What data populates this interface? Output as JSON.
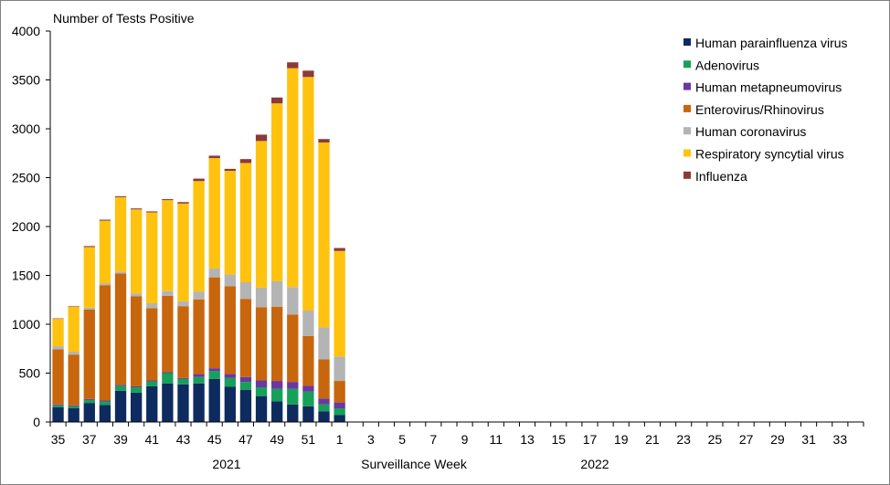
{
  "chart_data": {
    "type": "bar",
    "stacked": true,
    "ylabel": "Number of Tests Positive",
    "xlabel": "Surveillance Week",
    "ylim": [
      0,
      4000
    ],
    "yticks": [
      "0",
      "500",
      "1000",
      "1500",
      "2000",
      "2500",
      "3000",
      "3500",
      "4000"
    ],
    "xticks": [
      "35",
      "37",
      "39",
      "41",
      "43",
      "45",
      "47",
      "49",
      "51",
      "1",
      "3",
      "5",
      "7",
      "9",
      "11",
      "13",
      "15",
      "17",
      "19",
      "21",
      "23",
      "25",
      "27",
      "29",
      "31",
      "33"
    ],
    "year_labels": [
      "2021",
      "2022"
    ],
    "weeks": [
      "35",
      "36",
      "37",
      "38",
      "39",
      "40",
      "41",
      "42",
      "43",
      "44",
      "45",
      "46",
      "47",
      "48",
      "49",
      "50",
      "51",
      "52",
      "1",
      "2",
      "3",
      "4",
      "5",
      "6",
      "7",
      "8",
      "9",
      "10",
      "11",
      "12",
      "13",
      "14",
      "15",
      "16",
      "17",
      "18",
      "19",
      "20",
      "21",
      "22",
      "23",
      "24",
      "25",
      "26",
      "27",
      "28",
      "29",
      "30",
      "31",
      "32",
      "33",
      "34"
    ],
    "legend_position": "top-right",
    "grid": false,
    "series": [
      {
        "name": "Human parainfluenza virus",
        "color": "#0d2b5e",
        "values": [
          150,
          140,
          195,
          175,
          320,
          300,
          365,
          395,
          385,
          395,
          440,
          360,
          330,
          265,
          210,
          180,
          160,
          110,
          70
        ]
      },
      {
        "name": "Adenovirus",
        "color": "#16a05a",
        "values": [
          20,
          20,
          30,
          35,
          50,
          55,
          50,
          105,
          55,
          65,
          80,
          90,
          80,
          90,
          130,
          160,
          150,
          70,
          70
        ]
      },
      {
        "name": "Human metapneumovirus",
        "color": "#6a38a0",
        "values": [
          10,
          10,
          10,
          10,
          10,
          10,
          10,
          10,
          10,
          30,
          30,
          40,
          50,
          70,
          80,
          70,
          60,
          60,
          60
        ]
      },
      {
        "name": "Enterovirus/Rhinovirus",
        "color": "#c8660e",
        "values": [
          565,
          520,
          915,
          1180,
          1140,
          920,
          740,
          780,
          735,
          765,
          930,
          900,
          800,
          750,
          760,
          690,
          510,
          400,
          220
        ]
      },
      {
        "name": "Human coronavirus",
        "color": "#b4b4b4",
        "values": [
          30,
          30,
          20,
          20,
          20,
          30,
          50,
          50,
          50,
          80,
          90,
          120,
          170,
          200,
          260,
          280,
          260,
          330,
          250
        ]
      },
      {
        "name": "Respiratory syncytial virus",
        "color": "#ffc20e",
        "values": [
          280,
          460,
          620,
          640,
          760,
          860,
          930,
          930,
          1000,
          1130,
          1130,
          1060,
          1220,
          1500,
          1820,
          2240,
          2390,
          1890,
          1080
        ]
      },
      {
        "name": "Influenza",
        "color": "#8b3a3a",
        "values": [
          5,
          5,
          10,
          10,
          10,
          10,
          10,
          10,
          15,
          25,
          25,
          20,
          40,
          65,
          60,
          60,
          65,
          35,
          30
        ]
      }
    ]
  }
}
